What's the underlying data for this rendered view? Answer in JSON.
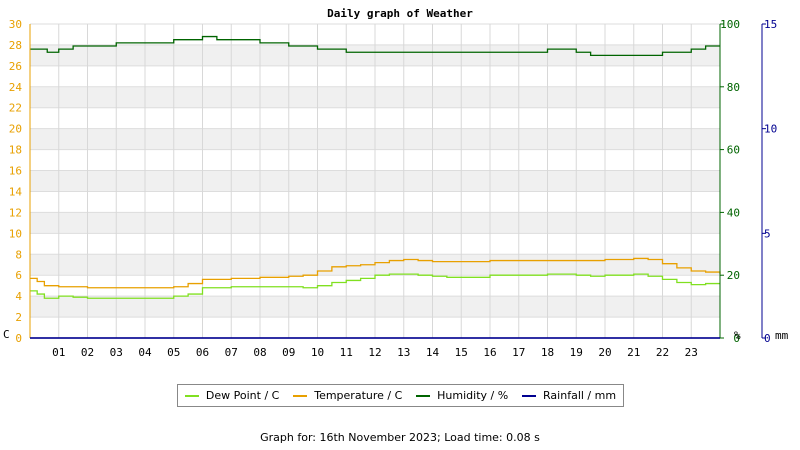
{
  "chart_data": {
    "type": "line",
    "title": "Daily graph of Weather",
    "x_ticks": [
      "01",
      "02",
      "03",
      "04",
      "05",
      "06",
      "07",
      "08",
      "09",
      "10",
      "11",
      "12",
      "13",
      "14",
      "15",
      "16",
      "17",
      "18",
      "19",
      "20",
      "21",
      "22",
      "23"
    ],
    "x_range": [
      0,
      24
    ],
    "left_axis": {
      "label": "C",
      "range": [
        0,
        30
      ],
      "ticks": [
        0,
        2,
        4,
        6,
        8,
        10,
        12,
        14,
        16,
        18,
        20,
        22,
        24,
        26,
        28,
        30
      ]
    },
    "right_axis_1": {
      "label": "%",
      "range": [
        0,
        100
      ],
      "ticks": [
        0,
        20,
        40,
        60,
        80,
        100
      ]
    },
    "right_axis_2": {
      "label": "mm",
      "range": [
        0,
        15
      ],
      "ticks": [
        0,
        5,
        10,
        15
      ]
    },
    "colors": {
      "dew_point": "#80e020",
      "temperature": "#e8a000",
      "humidity": "#006400",
      "rainfall": "#000090",
      "left_axis": "#e8a000",
      "right_axis_1": "#006400",
      "right_axis_2": "#000090"
    },
    "series": [
      {
        "name": "Dew Point / C",
        "key": "dew_point",
        "axis": "left",
        "x": [
          0,
          0.25,
          0.5,
          1,
          1.5,
          2,
          3,
          4,
          4.5,
          5,
          5.5,
          6,
          7,
          8,
          9,
          9.5,
          10,
          10.5,
          11,
          11.5,
          12,
          12.5,
          13,
          13.5,
          14,
          14.5,
          15,
          16,
          17,
          18,
          19,
          19.5,
          20,
          20.5,
          21,
          21.5,
          22,
          22.5,
          23,
          23.5,
          24
        ],
        "values": [
          4.5,
          4.2,
          3.8,
          4.0,
          3.9,
          3.8,
          3.8,
          3.8,
          3.8,
          4.0,
          4.2,
          4.8,
          4.9,
          4.9,
          4.9,
          4.8,
          5.0,
          5.3,
          5.5,
          5.7,
          6.0,
          6.1,
          6.1,
          6.0,
          5.9,
          5.8,
          5.8,
          6.0,
          6.0,
          6.1,
          6.0,
          5.9,
          6.0,
          6.0,
          6.1,
          5.9,
          5.6,
          5.3,
          5.1,
          5.2,
          5.2
        ]
      },
      {
        "name": "Temperature / C",
        "key": "temperature",
        "axis": "left",
        "x": [
          0,
          0.25,
          0.5,
          1,
          1.5,
          2,
          3,
          4,
          4.5,
          5,
          5.5,
          6,
          7,
          8,
          9,
          9.5,
          10,
          10.5,
          11,
          11.5,
          12,
          12.5,
          13,
          13.5,
          14,
          14.5,
          15,
          16,
          17,
          18,
          19,
          19.5,
          20,
          20.5,
          21,
          21.5,
          22,
          22.5,
          23,
          23.5,
          24
        ],
        "values": [
          5.7,
          5.4,
          5.0,
          4.9,
          4.9,
          4.8,
          4.8,
          4.8,
          4.8,
          4.9,
          5.2,
          5.6,
          5.7,
          5.8,
          5.9,
          6.0,
          6.4,
          6.8,
          6.9,
          7.0,
          7.2,
          7.4,
          7.5,
          7.4,
          7.3,
          7.3,
          7.3,
          7.4,
          7.4,
          7.4,
          7.4,
          7.4,
          7.5,
          7.5,
          7.6,
          7.5,
          7.1,
          6.7,
          6.4,
          6.3,
          6.1
        ]
      },
      {
        "name": "Humidity / %",
        "key": "humidity",
        "axis": "right_1",
        "x": [
          0,
          0.3,
          0.6,
          1,
          1.5,
          2,
          2.5,
          3,
          4,
          4.5,
          5,
          5.5,
          6,
          6.5,
          7,
          7.5,
          8,
          8.5,
          9,
          9.5,
          10,
          10.5,
          11,
          11.5,
          12,
          13,
          14,
          15,
          16,
          17,
          18,
          18.5,
          19,
          19.5,
          20,
          20.5,
          21,
          21.5,
          22,
          22.5,
          23,
          23.5,
          24
        ],
        "values": [
          92,
          92,
          91,
          92,
          93,
          93,
          93,
          94,
          94,
          94,
          95,
          95,
          96,
          95,
          95,
          95,
          94,
          94,
          93,
          93,
          92,
          92,
          91,
          91,
          91,
          91,
          91,
          91,
          91,
          91,
          92,
          92,
          91,
          90,
          90,
          90,
          90,
          90,
          91,
          91,
          92,
          93,
          93
        ]
      },
      {
        "name": "Rainfall / mm",
        "key": "rainfall",
        "axis": "right_2",
        "x": [
          0,
          24
        ],
        "values": [
          0,
          0
        ]
      }
    ],
    "grid": true,
    "legend": "bottom",
    "footer": "Graph for: 16th November 2023; Load time: 0.08 s"
  }
}
